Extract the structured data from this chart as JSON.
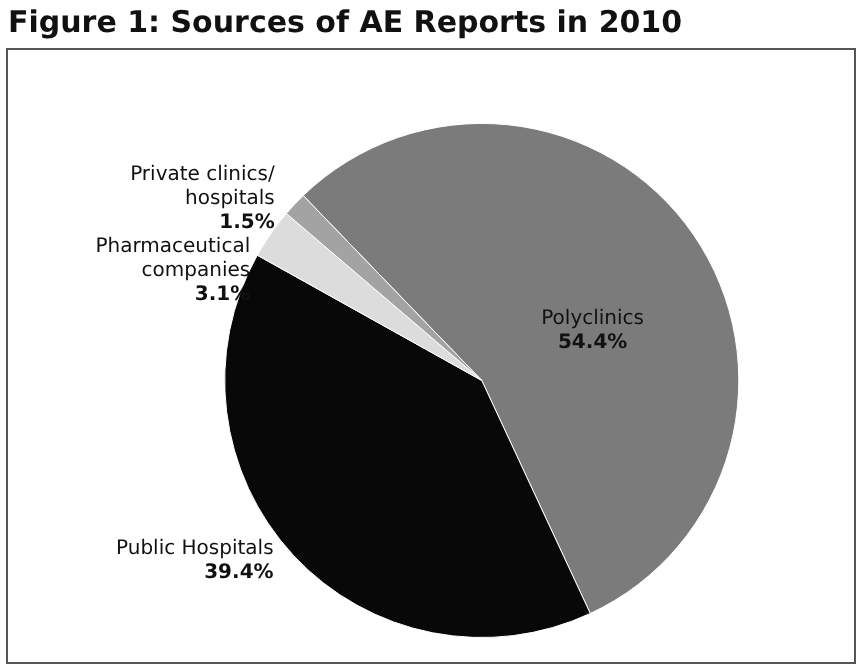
{
  "chart_data": {
    "type": "pie",
    "title": "Figure 1: Sources of AE Reports in 2010",
    "categories": [
      "Polyclinics",
      "Public Hospitals",
      "Pharmaceutical companies",
      "Private clinics/ hospitals"
    ],
    "values": [
      54.4,
      39.4,
      3.1,
      1.5
    ],
    "colors": [
      "#7b7b7b",
      "#080808",
      "#dcdcdc",
      "#a3a3a3"
    ],
    "value_labels": [
      "54.4%",
      "39.4%",
      "3.1%",
      "1.5%"
    ],
    "legend": false
  }
}
